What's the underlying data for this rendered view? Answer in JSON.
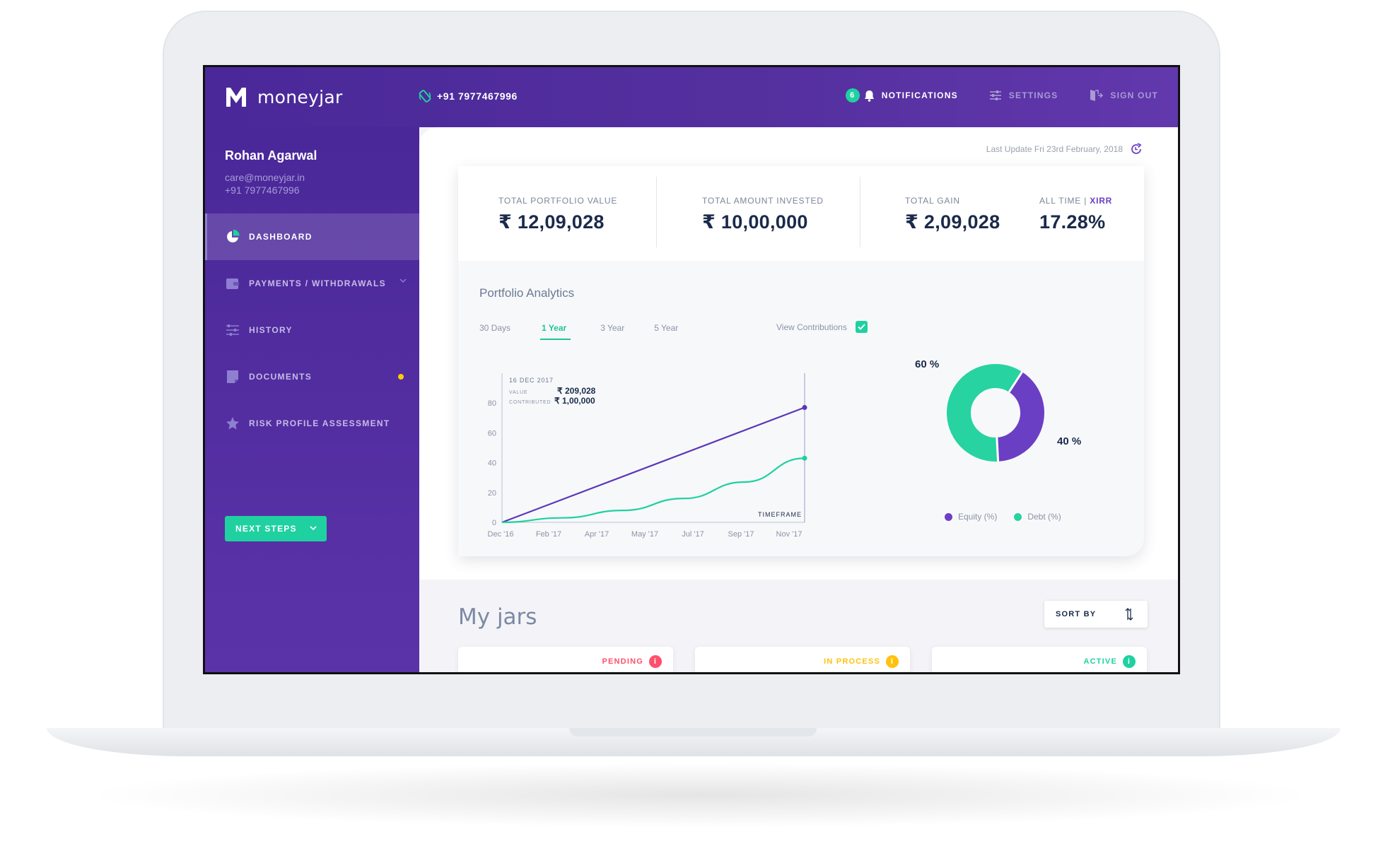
{
  "app": {
    "brand": "moneyjar",
    "phone": "+91 7977467996"
  },
  "topnav": {
    "notifications_count": "6",
    "notifications_label": "NOTIFICATIONS",
    "settings_label": "SETTINGS",
    "signout_label": "SIGN OUT"
  },
  "user": {
    "name": "Rohan Agarwal",
    "email": "care@moneyjar.in",
    "phone": "+91 7977467996"
  },
  "sidebar": {
    "items": [
      {
        "label": "DASHBOARD",
        "icon": "pie-chart-icon",
        "active": true
      },
      {
        "label": "PAYMENTS / WITHDRAWALS",
        "icon": "wallet-icon",
        "has_dropdown": true
      },
      {
        "label": "HISTORY",
        "icon": "sliders-icon"
      },
      {
        "label": "DOCUMENTS",
        "icon": "document-icon",
        "has_dot": true
      },
      {
        "label": "RISK PROFILE ASSESSMENT",
        "icon": "star-icon"
      }
    ],
    "next_steps_label": "NEXT STEPS"
  },
  "last_update": "Last Update Fri 23rd February, 2018",
  "stats": {
    "portfolio_label": "TOTAL PORTFOLIO VALUE",
    "portfolio_value": "₹ 12,09,028",
    "invested_label": "TOTAL AMOUNT INVESTED",
    "invested_value": "₹ 10,00,000",
    "gain_label": "TOTAL GAIN",
    "gain_value": "₹ 2,09,028",
    "xirr_label_prefix": "ALL TIME | ",
    "xirr_label": "XIRR",
    "xirr_value": "17.28%"
  },
  "analytics": {
    "title": "Portfolio Analytics",
    "tabs": [
      "30 Days",
      "1 Year",
      "3 Year",
      "5 Year"
    ],
    "active_tab": "1 Year",
    "view_contributions_label": "View Contributions",
    "view_contributions_checked": true,
    "tooltip": {
      "date": "16 DEC 2017",
      "value_label": "VALUE",
      "value": "₹ 209,028",
      "contributed_label": "CONTRIBUTED",
      "contributed": "₹ 1,00,000"
    },
    "timeframe_label": "TIMEFRAME"
  },
  "chart_data": [
    {
      "type": "line",
      "title": "",
      "xlabel": "TIMEFRAME",
      "ylabel": "",
      "x_ticks": [
        "Dec '16",
        "Feb '17",
        "Apr '17",
        "May '17",
        "Jul '17",
        "Sep '17",
        "Nov '17"
      ],
      "y_ticks": [
        0,
        20,
        40,
        60,
        80
      ],
      "ylim": [
        0,
        100
      ],
      "grid": false,
      "series": [
        {
          "name": "",
          "color": "#5b35b8",
          "x": [
            0,
            1
          ],
          "y": [
            0,
            77
          ]
        },
        {
          "name": "",
          "color": "#1fd1a0",
          "x": [
            0,
            0.2,
            0.4,
            0.6,
            0.8,
            1
          ],
          "y": [
            0,
            3,
            8,
            16,
            27,
            43
          ]
        }
      ]
    },
    {
      "type": "pie",
      "donut": true,
      "labels": [
        "Equity (%)",
        "Debt (%)"
      ],
      "values": [
        40,
        60
      ],
      "value_labels": [
        "40 %",
        "60 %"
      ],
      "colors": [
        "#6a3fc4",
        "#27d3a0"
      ]
    }
  ],
  "myjars": {
    "title": "My jars",
    "sort_label": "SORT BY",
    "jars": [
      {
        "status": "PENDING",
        "color": "#ff4f6d"
      },
      {
        "status": "IN PROCESS",
        "color": "#ffc20e"
      },
      {
        "status": "ACTIVE",
        "color": "#1fd1a0"
      }
    ]
  }
}
